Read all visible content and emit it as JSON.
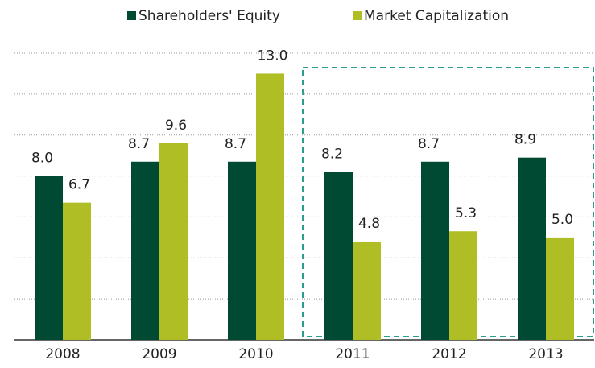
{
  "chart_data": {
    "type": "bar",
    "categories": [
      "2008",
      "2009",
      "2010",
      "2011",
      "2012",
      "2013"
    ],
    "series": [
      {
        "name": "Shareholders' Equity",
        "color": "#004a33",
        "values": [
          8.0,
          8.7,
          8.7,
          8.2,
          8.7,
          8.9
        ],
        "value_labels": [
          "8.0",
          "8.7",
          "8.7",
          "8.2",
          "8.7",
          "8.9"
        ]
      },
      {
        "name": "Market Capitalization",
        "color": "#afbe25",
        "values": [
          6.7,
          9.6,
          13.0,
          4.8,
          5.3,
          5.0
        ],
        "value_labels": [
          "6.7",
          "9.6",
          "13.0",
          "4.8",
          "5.3",
          "5.0"
        ]
      }
    ],
    "ylim": [
      0,
      14
    ],
    "yticks": [
      0,
      2,
      4,
      6,
      8,
      10,
      12,
      14
    ],
    "grid": true
  }
}
